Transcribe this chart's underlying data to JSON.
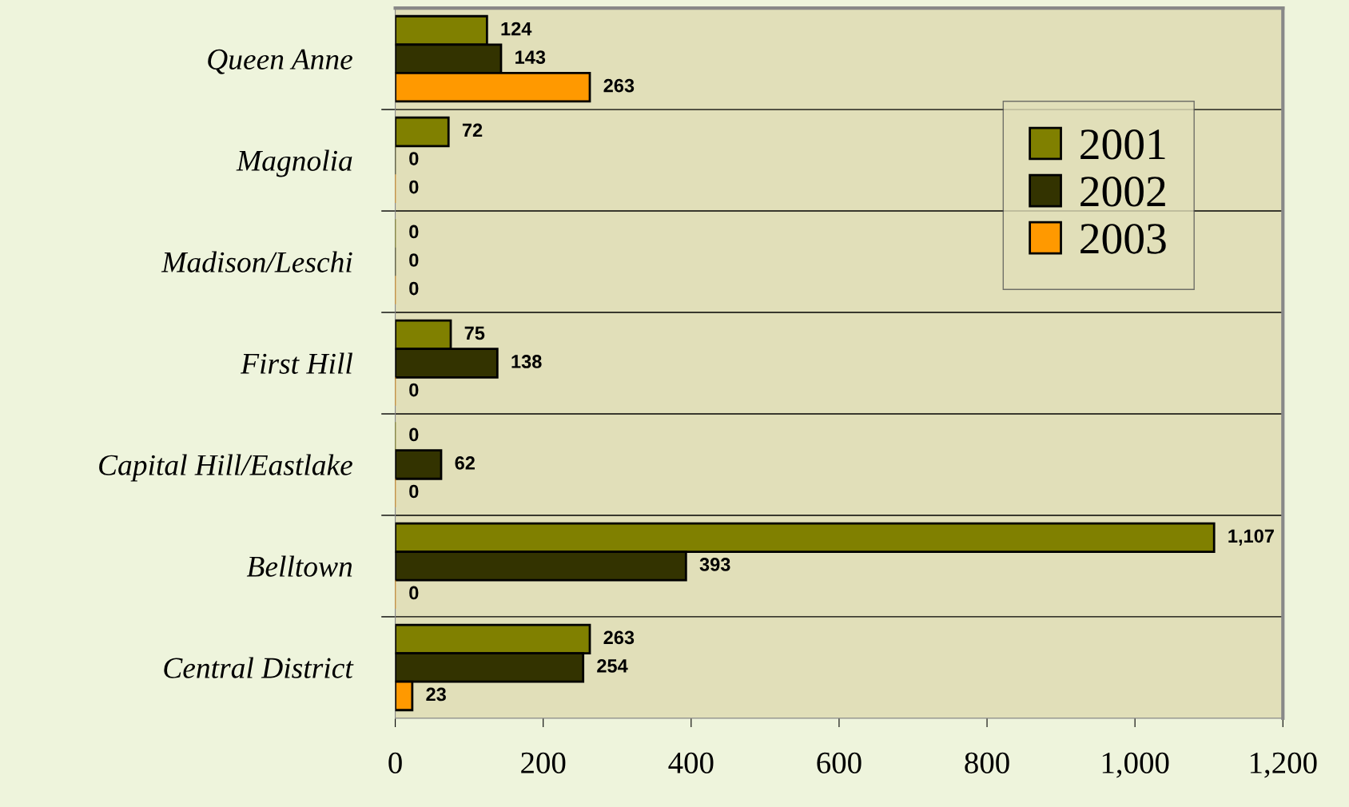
{
  "chart_data": {
    "type": "bar",
    "orientation": "horizontal",
    "categories": [
      "Queen Anne",
      "Magnolia",
      "Madison/Leschi",
      "First Hill",
      "Capital Hill/Eastlake",
      "Belltown",
      "Central District"
    ],
    "series": [
      {
        "name": "2001",
        "color": "#808000",
        "values": [
          124,
          72,
          0,
          75,
          0,
          1107,
          263
        ],
        "value_labels": [
          "124",
          "72",
          "0",
          "75",
          "0",
          "1,107",
          "263"
        ]
      },
      {
        "name": "2002",
        "color": "#333300",
        "values": [
          143,
          0,
          0,
          138,
          62,
          393,
          254
        ],
        "value_labels": [
          "143",
          "0",
          "0",
          "138",
          "62",
          "393",
          "254"
        ]
      },
      {
        "name": "2003",
        "color": "#ff9900",
        "values": [
          263,
          0,
          0,
          0,
          0,
          0,
          23
        ],
        "value_labels": [
          "263",
          "0",
          "0",
          "0",
          "0",
          "0",
          "23"
        ]
      }
    ],
    "xlim": [
      0,
      1200
    ],
    "xticks": [
      0,
      200,
      400,
      600,
      800,
      {
        "value": 1000,
        "label": "1,000"
      },
      {
        "value": 1200,
        "label": "1,200"
      }
    ],
    "grid": "y",
    "legend": "top right"
  }
}
